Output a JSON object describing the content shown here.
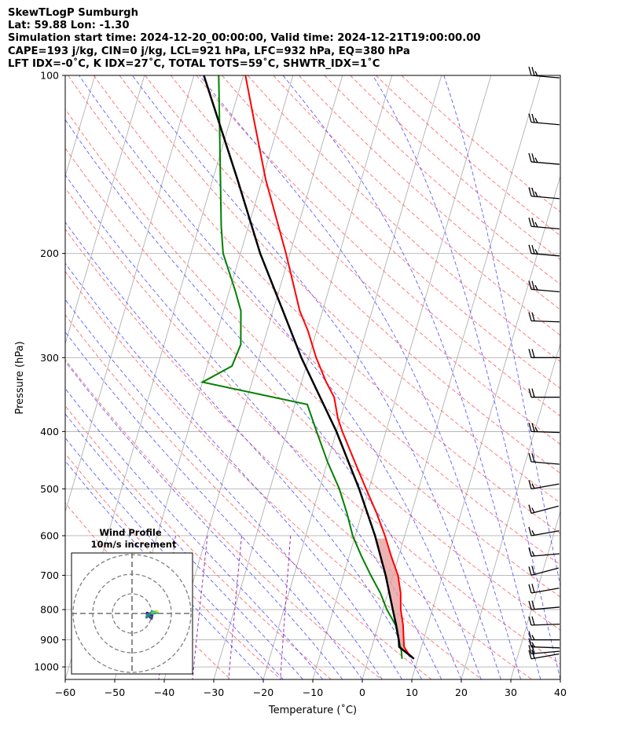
{
  "header": {
    "line1": "SkewTLogP Sumburgh",
    "line2": "Lat: 59.88   Lon: -1.30",
    "line3": "Simulation start time: 2024-12-20_00:00:00, Valid time: 2024-12-21T19:00:00.00",
    "line4": "CAPE=193 j/kg, CIN=0 j/kg, LCL=921 hPa, LFC=932 hPa, EQ=380 hPa",
    "line5": "LFT IDX=-0˚C, K IDX=27˚C, TOTAL TOTS=59˚C, SHWTR_IDX=1˚C"
  },
  "chart_data": {
    "type": "line",
    "subtype": "skew-T log-P diagram",
    "xlabel": "Temperature (˚C)",
    "ylabel": "Pressure (hPa)",
    "xlim": [
      -60,
      40
    ],
    "ylim": [
      1050,
      100
    ],
    "yscale": "log",
    "xticks": [
      -60,
      -50,
      -40,
      -30,
      -20,
      -10,
      0,
      10,
      20,
      30,
      40
    ],
    "yticks": [
      100,
      200,
      300,
      400,
      500,
      600,
      700,
      800,
      900,
      1000
    ],
    "grid": true,
    "colors": {
      "temperature": "#ff0000",
      "dewpoint": "#008000",
      "parcel": "#000000",
      "cape_fill": "#8ab4d6",
      "cin_fill": "#e8a0a0",
      "dry_adiabats": "#ff5555",
      "moist_adiabats": "#4444ff",
      "mixing_ratio": "#9b30b8"
    },
    "temperature_profile": {
      "pressure": [
        969,
        960,
        950,
        925,
        900,
        850,
        800,
        750,
        700,
        650,
        600,
        550,
        500,
        450,
        400,
        380,
        350,
        330,
        300,
        270,
        250,
        200,
        150,
        120,
        100
      ],
      "temperature": [
        9.2,
        8.6,
        7.8,
        6.5,
        6.0,
        5.0,
        3.6,
        2.6,
        1.0,
        -1.5,
        -4.0,
        -7.0,
        -10.6,
        -14.5,
        -18.8,
        -20.5,
        -22.5,
        -25.0,
        -28.5,
        -31.8,
        -34.6,
        -40.8,
        -49.3,
        -55.0,
        -59.6
      ]
    },
    "dewpoint_profile": {
      "pressure": [
        969,
        940,
        900,
        850,
        800,
        750,
        700,
        650,
        600,
        550,
        500,
        450,
        400,
        360,
        330,
        310,
        285,
        250,
        230,
        200,
        180,
        100
      ],
      "dewpoint": [
        6.8,
        6.2,
        5.0,
        3.5,
        0.8,
        -1.5,
        -4.5,
        -7.5,
        -10.5,
        -13.0,
        -16.0,
        -20.0,
        -24.0,
        -27.5,
        -50.0,
        -45.0,
        -44.5,
        -46.5,
        -49.0,
        -53.5,
        -55.5,
        -65.0
      ]
    },
    "parcel_profile": {
      "pressure": [
        969,
        925,
        900,
        850,
        800,
        700,
        600,
        500,
        400,
        300,
        250,
        200,
        150,
        100
      ],
      "temperature": [
        9.2,
        5.5,
        5.0,
        3.6,
        2.0,
        -1.5,
        -6.0,
        -12.0,
        -20.0,
        -31.5,
        -38.0,
        -46.0,
        -55.0,
        -68.0
      ]
    },
    "wind_barbs": [
      {
        "pressure": 100,
        "speed_kt": 25,
        "direction": 265
      },
      {
        "pressure": 120,
        "speed_kt": 25,
        "direction": 265
      },
      {
        "pressure": 140,
        "speed_kt": 25,
        "direction": 265
      },
      {
        "pressure": 160,
        "speed_kt": 25,
        "direction": 265
      },
      {
        "pressure": 180,
        "speed_kt": 25,
        "direction": 265
      },
      {
        "pressure": 200,
        "speed_kt": 25,
        "direction": 265
      },
      {
        "pressure": 230,
        "speed_kt": 25,
        "direction": 265
      },
      {
        "pressure": 260,
        "speed_kt": 20,
        "direction": 268
      },
      {
        "pressure": 300,
        "speed_kt": 20,
        "direction": 270
      },
      {
        "pressure": 350,
        "speed_kt": 20,
        "direction": 270
      },
      {
        "pressure": 400,
        "speed_kt": 25,
        "direction": 268
      },
      {
        "pressure": 450,
        "speed_kt": 20,
        "direction": 265
      },
      {
        "pressure": 500,
        "speed_kt": 15,
        "direction": 280
      },
      {
        "pressure": 550,
        "speed_kt": 15,
        "direction": 285
      },
      {
        "pressure": 600,
        "speed_kt": 15,
        "direction": 280
      },
      {
        "pressure": 650,
        "speed_kt": 15,
        "direction": 275
      },
      {
        "pressure": 700,
        "speed_kt": 20,
        "direction": 285
      },
      {
        "pressure": 750,
        "speed_kt": 20,
        "direction": 280
      },
      {
        "pressure": 800,
        "speed_kt": 20,
        "direction": 275
      },
      {
        "pressure": 850,
        "speed_kt": 20,
        "direction": 272
      },
      {
        "pressure": 900,
        "speed_kt": 15,
        "direction": 270
      },
      {
        "pressure": 925,
        "speed_kt": 15,
        "direction": 268
      },
      {
        "pressure": 950,
        "speed_kt": 20,
        "direction": 275
      },
      {
        "pressure": 969,
        "speed_kt": 20,
        "direction": 280
      }
    ],
    "inset": {
      "title": "Wind Profile",
      "subtitle": "10m/s increment",
      "ring_count": 3
    }
  }
}
